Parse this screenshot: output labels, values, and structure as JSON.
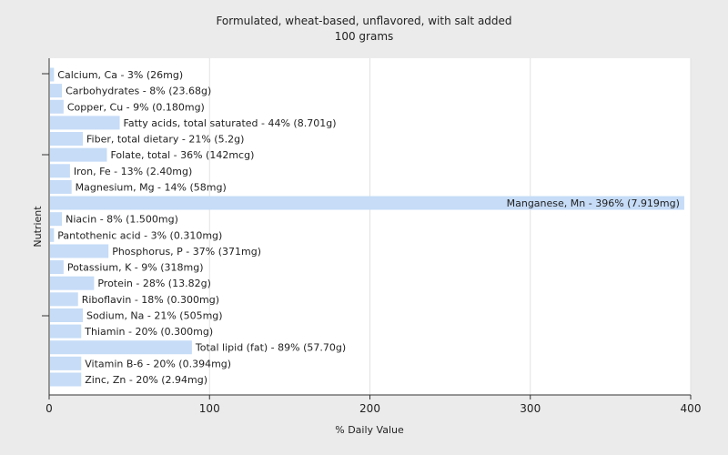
{
  "chart_data": {
    "type": "bar",
    "orientation": "horizontal",
    "title": "Formulated, wheat-based, unflavored, with salt added",
    "subtitle": "100 grams",
    "xlabel": "% Daily Value",
    "ylabel": "Nutrient",
    "xlim": [
      0,
      400
    ],
    "xticks": [
      0,
      100,
      200,
      300,
      400
    ],
    "grid": true,
    "bar_color": "#c6dcf7",
    "bars": [
      {
        "label": "Calcium, Ca - 3% (26mg)",
        "value": 3
      },
      {
        "label": "Carbohydrates - 8% (23.68g)",
        "value": 8
      },
      {
        "label": "Copper, Cu - 9% (0.180mg)",
        "value": 9
      },
      {
        "label": "Fatty acids, total saturated - 44% (8.701g)",
        "value": 44
      },
      {
        "label": "Fiber, total dietary - 21% (5.2g)",
        "value": 21
      },
      {
        "label": "Folate, total - 36% (142mcg)",
        "value": 36
      },
      {
        "label": "Iron, Fe - 13% (2.40mg)",
        "value": 13
      },
      {
        "label": "Magnesium, Mg - 14% (58mg)",
        "value": 14
      },
      {
        "label": "Manganese, Mn - 396% (7.919mg)",
        "value": 396
      },
      {
        "label": "Niacin - 8% (1.500mg)",
        "value": 8
      },
      {
        "label": "Pantothenic acid - 3% (0.310mg)",
        "value": 3
      },
      {
        "label": "Phosphorus, P - 37% (371mg)",
        "value": 37
      },
      {
        "label": "Potassium, K - 9% (318mg)",
        "value": 9
      },
      {
        "label": "Protein - 28% (13.82g)",
        "value": 28
      },
      {
        "label": "Riboflavin - 18% (0.300mg)",
        "value": 18
      },
      {
        "label": "Sodium, Na - 21% (505mg)",
        "value": 21
      },
      {
        "label": "Thiamin - 20% (0.300mg)",
        "value": 20
      },
      {
        "label": "Total lipid (fat) - 89% (57.70g)",
        "value": 89
      },
      {
        "label": "Vitamin B-6 - 20% (0.394mg)",
        "value": 20
      },
      {
        "label": "Zinc, Zn - 20% (2.94mg)",
        "value": 20
      }
    ]
  }
}
